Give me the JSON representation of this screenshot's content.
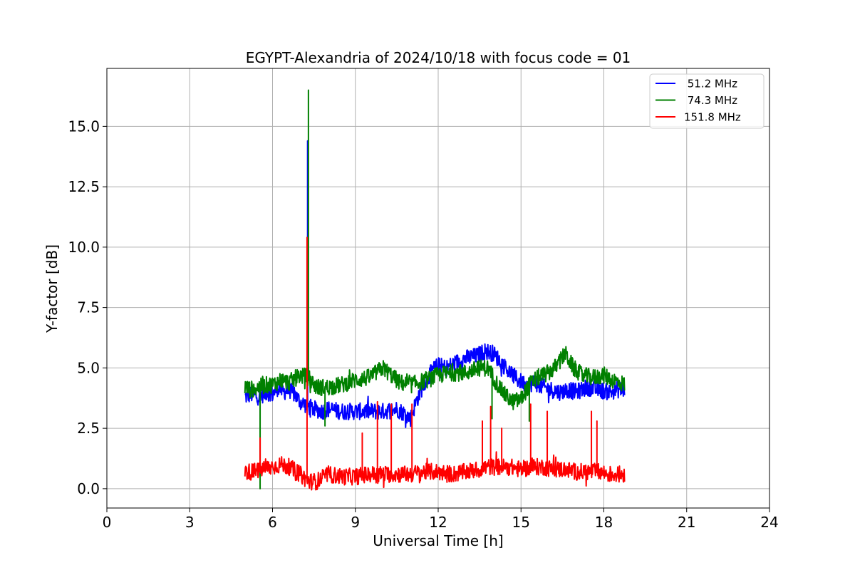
{
  "chart_data": {
    "type": "line",
    "title": "EGYPT-Alexandria of 2024/10/18 with focus code = 01",
    "xlabel": "Universal Time [h]",
    "ylabel": "Y-factor [dB]",
    "xlim": [
      0,
      24
    ],
    "ylim": [
      -0.8,
      17.4
    ],
    "x_ticks": [
      0,
      3,
      6,
      9,
      12,
      15,
      18,
      21,
      24
    ],
    "x_tick_labels": [
      "0",
      "3",
      "6",
      "9",
      "12",
      "15",
      "18",
      "21",
      "24"
    ],
    "y_ticks": [
      0,
      2.5,
      5,
      7.5,
      10,
      12.5,
      15
    ],
    "y_tick_labels": [
      "0.0",
      "2.5",
      "5.0",
      "7.5",
      "10.0",
      "12.5",
      "15.0"
    ],
    "grid": true,
    "legend_position": "top-right",
    "series": [
      {
        "name": " 51.2 MHz",
        "color": "#0000ff",
        "x": [
          5.0,
          5.2,
          5.5,
          5.8,
          6.0,
          6.2,
          6.4,
          6.6,
          6.8,
          7.0,
          7.3,
          7.5,
          7.8,
          8.0,
          8.5,
          9.0,
          9.5,
          10.0,
          10.5,
          10.8,
          11.0,
          11.2,
          11.5,
          11.8,
          12.0,
          12.3,
          12.6,
          13.0,
          13.4,
          13.7,
          14.0,
          14.3,
          14.6,
          14.9,
          15.2,
          15.5,
          15.8,
          16.1,
          16.4,
          16.7,
          17.0,
          17.4,
          17.8,
          18.2,
          18.5,
          18.75
        ],
        "values": [
          3.8,
          3.9,
          3.8,
          4.0,
          3.9,
          4.2,
          4.0,
          4.1,
          3.9,
          3.6,
          3.4,
          3.3,
          3.2,
          3.3,
          3.2,
          3.2,
          3.2,
          3.2,
          3.3,
          3.1,
          2.9,
          3.6,
          4.4,
          4.9,
          5.1,
          5.0,
          5.2,
          5.4,
          5.5,
          5.7,
          5.6,
          5.2,
          4.8,
          4.5,
          4.3,
          4.4,
          4.2,
          4.1,
          4.0,
          4.1,
          4.0,
          4.2,
          4.1,
          4.0,
          4.1,
          4.1
        ],
        "noise": 0.35
      },
      {
        "name": " 74.3 MHz",
        "color": "#008000",
        "x": [
          5.0,
          5.2,
          5.5,
          5.8,
          6.0,
          6.3,
          6.6,
          7.0,
          7.3,
          7.6,
          8.0,
          8.5,
          9.0,
          9.5,
          10.0,
          10.3,
          10.6,
          11.0,
          11.3,
          11.6,
          12.0,
          12.5,
          13.0,
          13.5,
          13.8,
          14.1,
          14.4,
          14.7,
          15.0,
          15.3,
          15.6,
          16.0,
          16.3,
          16.6,
          16.9,
          17.2,
          17.6,
          18.0,
          18.3,
          18.6,
          18.75
        ],
        "values": [
          4.2,
          4.1,
          4.2,
          4.3,
          4.3,
          4.5,
          4.4,
          4.7,
          4.6,
          4.2,
          4.2,
          4.3,
          4.5,
          4.6,
          5.0,
          4.7,
          4.4,
          4.3,
          4.4,
          4.5,
          4.7,
          4.8,
          4.8,
          5.0,
          5.0,
          4.4,
          3.9,
          3.6,
          3.7,
          4.3,
          4.6,
          4.8,
          5.1,
          5.6,
          5.0,
          4.7,
          4.6,
          4.7,
          4.5,
          4.4,
          4.3
        ],
        "noise": 0.35
      },
      {
        "name": "151.8 MHz",
        "color": "#ff0000",
        "x": [
          5.0,
          5.3,
          5.6,
          6.0,
          6.3,
          6.6,
          7.0,
          7.3,
          7.6,
          8.0,
          8.5,
          9.0,
          9.5,
          10.0,
          10.5,
          11.0,
          11.5,
          12.0,
          12.5,
          13.0,
          13.5,
          13.8,
          14.2,
          14.6,
          15.0,
          15.4,
          15.8,
          16.2,
          16.6,
          17.0,
          17.4,
          17.8,
          18.2,
          18.5,
          18.75
        ],
        "values": [
          0.7,
          0.7,
          0.8,
          0.9,
          1.0,
          0.9,
          0.6,
          0.3,
          0.3,
          0.6,
          0.5,
          0.5,
          0.6,
          0.6,
          0.6,
          0.6,
          0.7,
          0.7,
          0.6,
          0.7,
          0.8,
          0.9,
          0.9,
          0.9,
          0.8,
          0.9,
          0.9,
          0.8,
          0.8,
          0.7,
          0.7,
          0.7,
          0.6,
          0.6,
          0.6
        ],
        "noise": 0.35
      }
    ],
    "spikes": [
      {
        "series": 0,
        "x": 7.27,
        "values": [
          3.4,
          9.0,
          14.4,
          3.4
        ]
      },
      {
        "series": 1,
        "x": 5.55,
        "values": [
          4.2,
          0.0,
          4.2
        ]
      },
      {
        "series": 1,
        "x": 7.3,
        "values": [
          4.6,
          16.5,
          4.6
        ]
      },
      {
        "series": 1,
        "x": 7.9,
        "values": [
          4.2,
          2.6,
          4.2
        ]
      },
      {
        "series": 1,
        "x": 13.95,
        "values": [
          5.0,
          2.9,
          5.0
        ]
      },
      {
        "series": 1,
        "x": 15.3,
        "values": [
          3.8,
          2.8,
          3.8
        ]
      },
      {
        "series": 2,
        "x": 5.55,
        "values": [
          0.8,
          2.1,
          0.8
        ]
      },
      {
        "series": 2,
        "x": 7.25,
        "values": [
          0.3,
          10.4,
          0.3
        ]
      },
      {
        "series": 2,
        "x": 9.25,
        "values": [
          0.5,
          2.3,
          0.5
        ]
      },
      {
        "series": 2,
        "x": 9.8,
        "values": [
          0.6,
          3.6,
          0.6
        ]
      },
      {
        "series": 2,
        "x": 10.3,
        "values": [
          0.6,
          3.5,
          0.6
        ]
      },
      {
        "series": 2,
        "x": 11.05,
        "values": [
          0.6,
          3.5,
          0.6
        ]
      },
      {
        "series": 2,
        "x": 13.6,
        "values": [
          0.8,
          2.8,
          0.8
        ]
      },
      {
        "series": 2,
        "x": 13.9,
        "values": [
          0.9,
          3.4,
          0.9
        ]
      },
      {
        "series": 2,
        "x": 14.3,
        "values": [
          0.9,
          2.5,
          0.9
        ]
      },
      {
        "series": 2,
        "x": 15.35,
        "values": [
          0.9,
          3.5,
          0.9
        ]
      },
      {
        "series": 2,
        "x": 15.95,
        "values": [
          0.8,
          3.2,
          0.8
        ]
      },
      {
        "series": 2,
        "x": 17.55,
        "values": [
          0.7,
          3.2,
          0.7
        ]
      },
      {
        "series": 2,
        "x": 17.75,
        "values": [
          0.7,
          2.8,
          0.7
        ]
      }
    ]
  }
}
